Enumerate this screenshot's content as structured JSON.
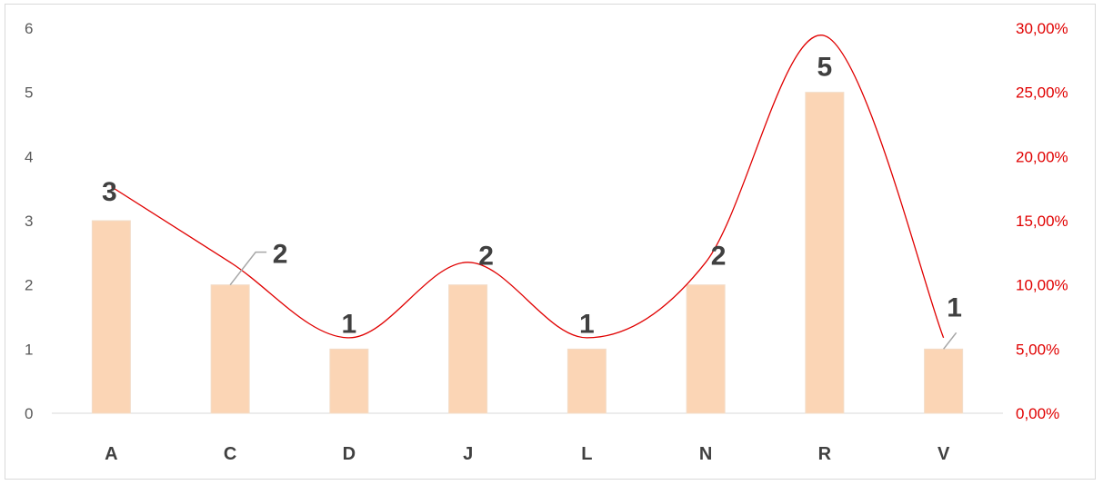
{
  "chart_data": {
    "type": "bar",
    "title": "",
    "xlabel": "",
    "ylabel": "",
    "categories": [
      "A",
      "C",
      "D",
      "J",
      "L",
      "N",
      "R",
      "V"
    ],
    "series": [
      {
        "type": "bar",
        "values": [
          3,
          2,
          1,
          2,
          1,
          2,
          5,
          1
        ],
        "color": "#fbd5b5",
        "data_labels": [
          "3",
          "2",
          "1",
          "2",
          "1",
          "2",
          "5",
          "1"
        ]
      },
      {
        "type": "line",
        "axis": "secondary",
        "values": [
          0.1765,
          0.1176,
          0.0588,
          0.1176,
          0.0588,
          0.1176,
          0.2941,
          0.0588
        ],
        "color": "#e00000",
        "smooth": true
      }
    ],
    "ylim": [
      0,
      6
    ],
    "y_ticks": [
      "0",
      "1",
      "2",
      "3",
      "4",
      "5",
      "6"
    ],
    "y2lim": [
      0,
      0.3
    ],
    "y2_ticks": [
      "0,00%",
      "5,00%",
      "10,00%",
      "15,00%",
      "20,00%",
      "25,00%",
      "30,00%"
    ],
    "grid": false,
    "legend": "none"
  }
}
